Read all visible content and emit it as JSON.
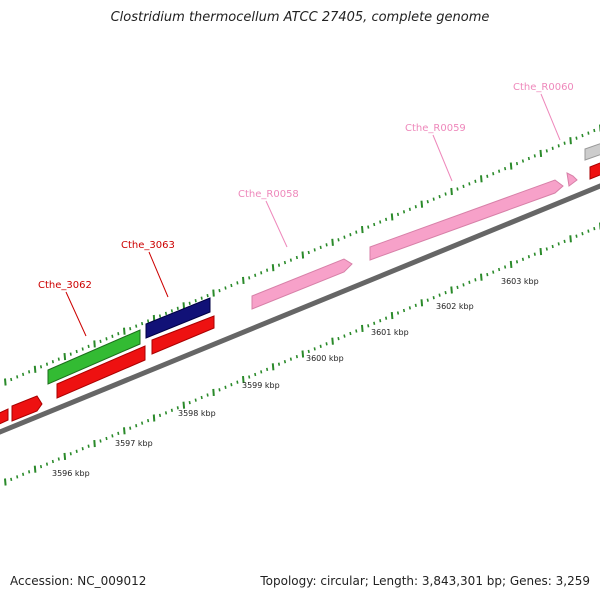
{
  "title": "Clostridium thermocellum ATCC 27405, complete genome",
  "footer": {
    "accession": "Accession: NC_009012",
    "summary": "Topology: circular; Length: 3,843,301 bp; Genes: 3,259"
  },
  "colors": {
    "cds_red": "#ee1111",
    "cds_green": "#33bb33",
    "cds_navy": "#111177",
    "rna_pink": "#f7a1c9",
    "grey": "#cccccc",
    "ticks": "#2a8a2a",
    "label_red": "#cc0000",
    "label_pink": "#ee88bb"
  },
  "labels": [
    {
      "text": "Cthe_3062",
      "color": "label_red"
    },
    {
      "text": "Cthe_3063",
      "color": "label_red"
    },
    {
      "text": "Cthe_R0058",
      "color": "label_pink"
    },
    {
      "text": "Cthe_R0059",
      "color": "label_pink"
    },
    {
      "text": "Cthe_R0060",
      "color": "label_pink"
    }
  ],
  "kbp_labels": [
    "3596 kbp",
    "3597 kbp",
    "3598 kbp",
    "3599 kbp",
    "3600 kbp",
    "3601 kbp",
    "3602 kbp",
    "3603 kbp"
  ]
}
